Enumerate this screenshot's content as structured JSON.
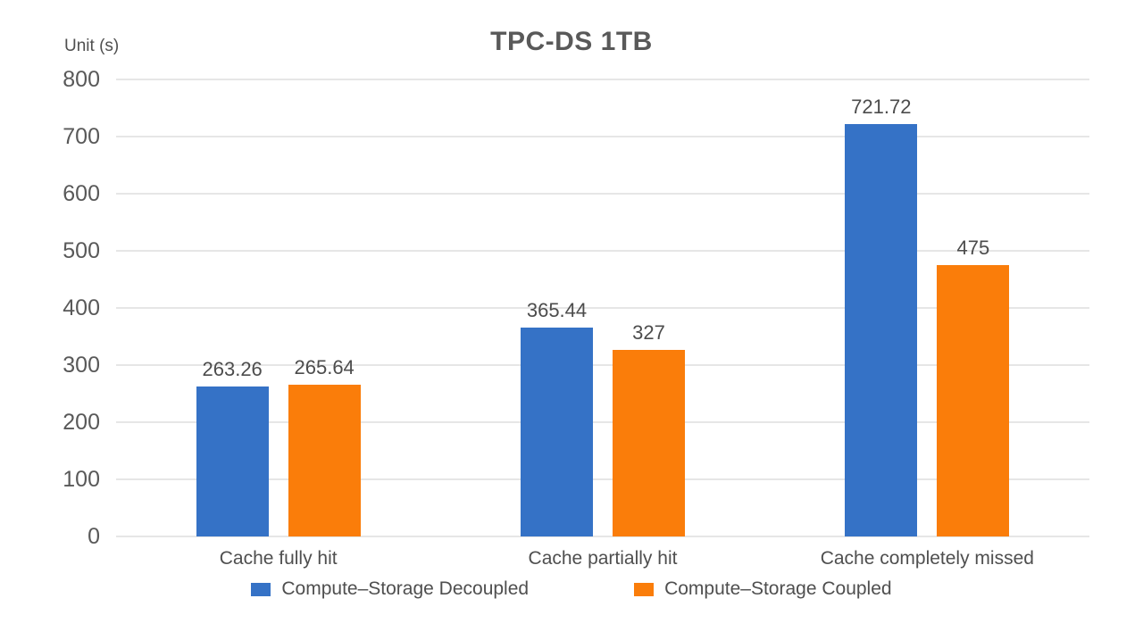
{
  "chart_data": {
    "type": "bar",
    "title": "TPC-DS 1TB",
    "unit_label": "Unit (s)",
    "categories": [
      "Cache fully hit",
      "Cache partially hit",
      "Cache completely missed"
    ],
    "series": [
      {
        "name": "Compute–Storage Decoupled",
        "color": "#3572C6",
        "values": [
          263.26,
          365.44,
          721.72
        ]
      },
      {
        "name": "Compute–Storage Coupled",
        "color": "#FA7D0A",
        "values": [
          265.64,
          327,
          475
        ]
      }
    ],
    "value_labels": [
      [
        "263.26",
        "365.44",
        "721.72"
      ],
      [
        "265.64",
        "327",
        "475"
      ]
    ],
    "ylabel": "",
    "xlabel": "",
    "ylim": [
      0,
      800
    ],
    "yticks": [
      0,
      100,
      200,
      300,
      400,
      500,
      600,
      700,
      800
    ],
    "grid": true,
    "legend_position": "bottom",
    "colors": {
      "grid": "#e6e6e6",
      "tick_text": "#595959",
      "title_text": "#595959",
      "label_text": "#4f4f4f",
      "value_text": "#4c4c4c",
      "background": "#ffffff"
    }
  }
}
